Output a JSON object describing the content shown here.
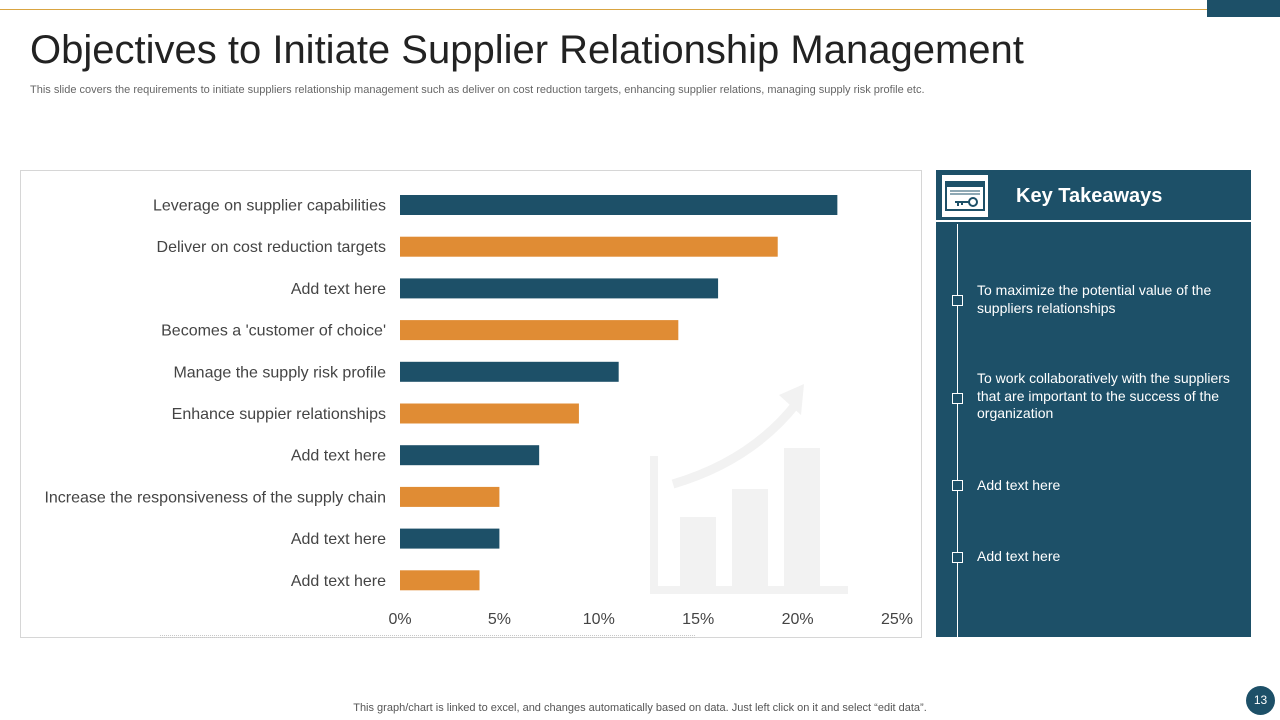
{
  "slide": {
    "title": "Objectives to Initiate Supplier Relationship Management",
    "subtitle": "This slide covers the requirements to initiate suppliers relationship management such as deliver on cost reduction targets, enhancing supplier relations, managing supply risk profile etc.",
    "footer_note": "This graph/chart is linked to excel,  and changes automatically based on data. Just left click on it and select “edit data”.",
    "page_number": "13"
  },
  "colors": {
    "teal": "#1d5068",
    "orange": "#e08c34",
    "accent_line": "#d9a441",
    "watermark": "#f2f2f2"
  },
  "chart_data": {
    "type": "bar",
    "orientation": "horizontal",
    "categories": [
      "Leverage on supplier capabilities",
      "Deliver on cost reduction targets",
      "Add text here",
      "Becomes a 'customer of choice'",
      "Manage the supply risk profile",
      "Enhance suppier relationships",
      "Add text here",
      "Increase the responsiveness of the supply chain",
      "Add text here",
      "Add text here"
    ],
    "values": [
      0.22,
      0.19,
      0.16,
      0.14,
      0.11,
      0.09,
      0.07,
      0.05,
      0.05,
      0.04
    ],
    "bar_colors": [
      "#1d5068",
      "#e08c34",
      "#1d5068",
      "#e08c34",
      "#1d5068",
      "#e08c34",
      "#1d5068",
      "#e08c34",
      "#1d5068",
      "#e08c34"
    ],
    "xlim": [
      0,
      0.25
    ],
    "xticks": [
      0,
      0.05,
      0.1,
      0.15,
      0.2,
      0.25
    ],
    "xtick_labels": [
      "0%",
      "5%",
      "10%",
      "15%",
      "20%",
      "25%"
    ],
    "grid": false,
    "legend": "none",
    "watermark_icon": "growth-chart-icon"
  },
  "takeaways": {
    "title": "Key Takeaways",
    "icon": "key-certificate-icon",
    "items": [
      "To maximize the potential value of the suppliers relationships",
      "To work collaboratively with the suppliers that are important to the success of the organization",
      "Add text here",
      "Add text here"
    ]
  }
}
